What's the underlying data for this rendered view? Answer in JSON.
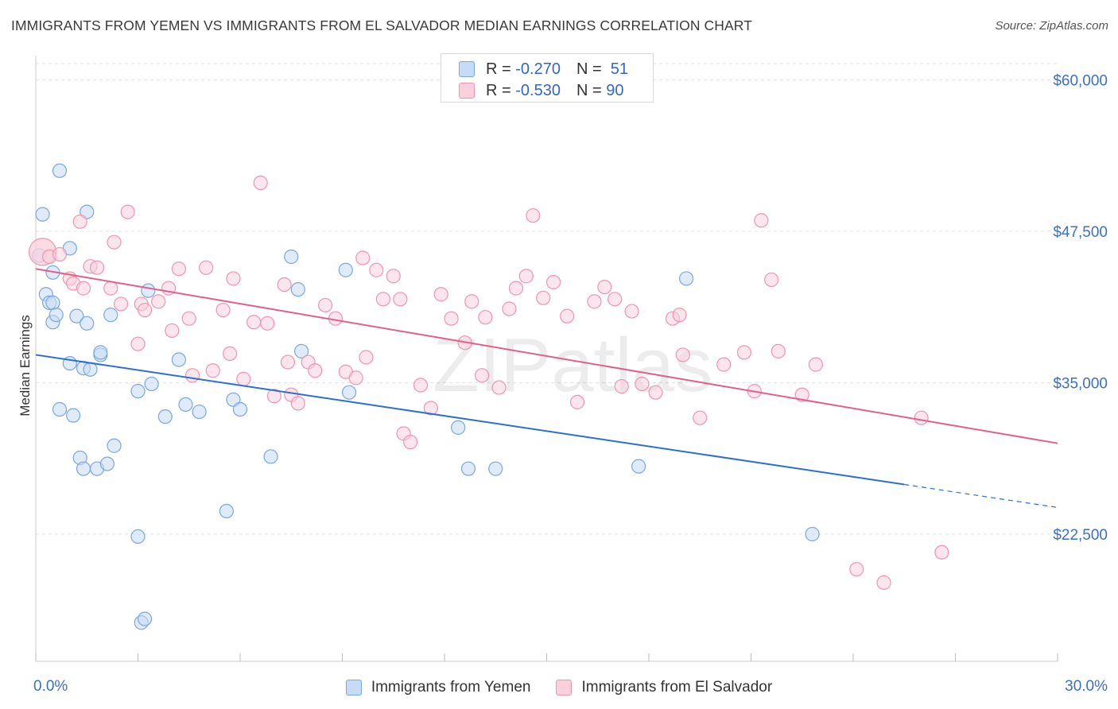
{
  "title": "IMMIGRANTS FROM YEMEN VS IMMIGRANTS FROM EL SALVADOR MEDIAN EARNINGS CORRELATION CHART",
  "source": "Source: ZipAtlas.com",
  "watermark": "ZIPatlas",
  "legend_stats": [
    {
      "r_label": "R =",
      "r_value": "-0.270",
      "n_label": "N =",
      "n_value": "51",
      "color": "#7aa7e0"
    },
    {
      "r_label": "R =",
      "r_value": "-0.530",
      "n_label": "N =",
      "n_value": "90",
      "color": "#ef95b1"
    }
  ],
  "chart_data": {
    "type": "scatter",
    "ylabel": "Median Earnings",
    "xlim": [
      0,
      30
    ],
    "ylim": [
      12000,
      62000
    ],
    "x_tick_labels": [
      "0.0%",
      "30.0%"
    ],
    "y_ticks": [
      {
        "value": 22500,
        "label": "$22,500"
      },
      {
        "value": 35000,
        "label": "$35,000"
      },
      {
        "value": 47500,
        "label": "$47,500"
      },
      {
        "value": 60000,
        "label": "$60,000"
      }
    ],
    "grid": true,
    "legend_position": "bottom",
    "series": [
      {
        "name": "Immigrants from Yemen",
        "color": "#7aa7e0",
        "fill": "#c6dbf5",
        "trend_color": "#2d6fd0",
        "trend": {
          "x_start": 0,
          "y_start": 37300,
          "x_solid_end": 25.5,
          "y_solid_end": 26600,
          "x_end": 30,
          "y_end": 24700
        },
        "points": [
          [
            0.1,
            45500
          ],
          [
            0.2,
            48900
          ],
          [
            0.3,
            42300
          ],
          [
            0.4,
            41600
          ],
          [
            0.5,
            40000
          ],
          [
            0.5,
            44100
          ],
          [
            0.5,
            41600
          ],
          [
            0.6,
            40600
          ],
          [
            0.7,
            52500
          ],
          [
            0.7,
            32800
          ],
          [
            1.0,
            46100
          ],
          [
            1.0,
            36600
          ],
          [
            1.1,
            32300
          ],
          [
            1.2,
            40500
          ],
          [
            1.3,
            28800
          ],
          [
            1.4,
            27900
          ],
          [
            1.4,
            36200
          ],
          [
            1.5,
            49100
          ],
          [
            1.5,
            39900
          ],
          [
            1.6,
            36100
          ],
          [
            1.8,
            27900
          ],
          [
            1.9,
            37300
          ],
          [
            1.9,
            37500
          ],
          [
            2.1,
            28300
          ],
          [
            2.2,
            40600
          ],
          [
            2.3,
            29800
          ],
          [
            3.0,
            22300
          ],
          [
            3.0,
            34300
          ],
          [
            3.1,
            15200
          ],
          [
            3.2,
            15500
          ],
          [
            3.3,
            42600
          ],
          [
            3.4,
            34900
          ],
          [
            3.8,
            32200
          ],
          [
            4.2,
            36900
          ],
          [
            4.4,
            33200
          ],
          [
            4.8,
            32600
          ],
          [
            5.6,
            24400
          ],
          [
            5.8,
            33600
          ],
          [
            6.0,
            32800
          ],
          [
            6.9,
            28900
          ],
          [
            7.5,
            45400
          ],
          [
            7.7,
            42700
          ],
          [
            7.8,
            37600
          ],
          [
            9.1,
            44300
          ],
          [
            9.2,
            34200
          ],
          [
            12.4,
            31300
          ],
          [
            12.7,
            27900
          ],
          [
            13.5,
            27900
          ],
          [
            17.7,
            28100
          ],
          [
            19.1,
            43600
          ],
          [
            22.8,
            22500
          ]
        ]
      },
      {
        "name": "Immigrants from El Salvador",
        "color": "#ef95b1",
        "fill": "#fad0dc",
        "trend_color": "#e0608a",
        "trend": {
          "x_start": 0,
          "y_start": 44400,
          "x_end": 30,
          "y_end": 30000
        },
        "points": [
          [
            0.2,
            45800
          ],
          [
            0.4,
            45400
          ],
          [
            0.7,
            45600
          ],
          [
            1.0,
            43600
          ],
          [
            1.1,
            43200
          ],
          [
            1.3,
            48300
          ],
          [
            1.4,
            42800
          ],
          [
            1.6,
            44600
          ],
          [
            1.8,
            44500
          ],
          [
            2.2,
            42800
          ],
          [
            2.3,
            46600
          ],
          [
            2.5,
            41500
          ],
          [
            2.7,
            49100
          ],
          [
            3.0,
            38200
          ],
          [
            3.1,
            41500
          ],
          [
            3.2,
            41000
          ],
          [
            3.6,
            41700
          ],
          [
            3.9,
            42800
          ],
          [
            4.0,
            39300
          ],
          [
            4.2,
            44400
          ],
          [
            4.5,
            40300
          ],
          [
            4.6,
            35600
          ],
          [
            5.0,
            44500
          ],
          [
            5.2,
            36000
          ],
          [
            5.5,
            41000
          ],
          [
            5.7,
            37400
          ],
          [
            5.8,
            43600
          ],
          [
            6.1,
            35300
          ],
          [
            6.4,
            40000
          ],
          [
            6.6,
            51500
          ],
          [
            6.8,
            39900
          ],
          [
            7.0,
            33900
          ],
          [
            7.3,
            43100
          ],
          [
            7.4,
            36700
          ],
          [
            7.5,
            34000
          ],
          [
            7.7,
            33300
          ],
          [
            8.0,
            36700
          ],
          [
            8.2,
            36000
          ],
          [
            8.5,
            41400
          ],
          [
            8.8,
            40300
          ],
          [
            9.1,
            35900
          ],
          [
            9.4,
            35400
          ],
          [
            9.6,
            45300
          ],
          [
            9.7,
            37100
          ],
          [
            10.0,
            44300
          ],
          [
            10.2,
            41900
          ],
          [
            10.5,
            43800
          ],
          [
            10.7,
            41900
          ],
          [
            10.8,
            30800
          ],
          [
            11.0,
            30100
          ],
          [
            11.3,
            34800
          ],
          [
            11.6,
            32900
          ],
          [
            11.9,
            42300
          ],
          [
            12.2,
            40300
          ],
          [
            12.6,
            38300
          ],
          [
            12.8,
            41700
          ],
          [
            13.1,
            35600
          ],
          [
            13.2,
            40400
          ],
          [
            13.6,
            34600
          ],
          [
            13.9,
            41100
          ],
          [
            14.1,
            42800
          ],
          [
            14.4,
            43800
          ],
          [
            14.6,
            48800
          ],
          [
            14.9,
            42000
          ],
          [
            15.2,
            43300
          ],
          [
            15.6,
            40500
          ],
          [
            15.9,
            33400
          ],
          [
            16.4,
            41700
          ],
          [
            16.7,
            42900
          ],
          [
            17.0,
            41900
          ],
          [
            17.2,
            34700
          ],
          [
            17.5,
            40900
          ],
          [
            17.8,
            34900
          ],
          [
            18.2,
            34200
          ],
          [
            18.7,
            40300
          ],
          [
            18.9,
            40600
          ],
          [
            19.0,
            37300
          ],
          [
            19.5,
            32100
          ],
          [
            20.2,
            36500
          ],
          [
            20.8,
            37500
          ],
          [
            21.1,
            34300
          ],
          [
            21.3,
            48400
          ],
          [
            21.6,
            43500
          ],
          [
            21.8,
            37600
          ],
          [
            22.5,
            34000
          ],
          [
            22.9,
            36500
          ],
          [
            24.1,
            19600
          ],
          [
            24.9,
            18500
          ],
          [
            26.0,
            32100
          ],
          [
            26.6,
            21000
          ]
        ]
      }
    ]
  }
}
